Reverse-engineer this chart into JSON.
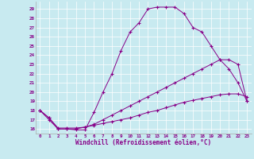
{
  "xlabel": "Windchill (Refroidissement éolien,°C)",
  "background_color": "#c8eaf0",
  "line_color": "#880088",
  "xlim": [
    -0.5,
    23.5
  ],
  "ylim": [
    15.5,
    29.8
  ],
  "xticks": [
    0,
    1,
    2,
    3,
    4,
    5,
    6,
    7,
    8,
    9,
    10,
    11,
    12,
    13,
    14,
    15,
    16,
    17,
    18,
    19,
    20,
    21,
    22,
    23
  ],
  "yticks": [
    16,
    17,
    18,
    19,
    20,
    21,
    22,
    23,
    24,
    25,
    26,
    27,
    28,
    29
  ],
  "line1_x": [
    0,
    1,
    2,
    3,
    4,
    5,
    6,
    7,
    8,
    9,
    10,
    11,
    12,
    13,
    14,
    15,
    16,
    17,
    18,
    19,
    20,
    21,
    22,
    23
  ],
  "line1_y": [
    18.0,
    17.0,
    16.0,
    16.0,
    15.9,
    15.9,
    17.8,
    20.0,
    22.0,
    24.5,
    26.5,
    27.5,
    29.0,
    29.2,
    29.2,
    29.2,
    28.5,
    27.0,
    26.5,
    25.0,
    23.5,
    22.5,
    21.0,
    19.0
  ],
  "line2_x": [
    0,
    1,
    2,
    3,
    4,
    5,
    6,
    7,
    8,
    9,
    10,
    11,
    12,
    13,
    14,
    15,
    16,
    17,
    18,
    19,
    20,
    21,
    22,
    23
  ],
  "line2_y": [
    18.0,
    17.2,
    16.0,
    16.0,
    16.0,
    16.2,
    16.5,
    17.0,
    17.5,
    18.0,
    18.5,
    19.0,
    19.5,
    20.0,
    20.5,
    21.0,
    21.5,
    22.0,
    22.5,
    23.0,
    23.5,
    23.5,
    23.0,
    19.0
  ],
  "line3_x": [
    0,
    1,
    2,
    3,
    4,
    5,
    6,
    7,
    8,
    9,
    10,
    11,
    12,
    13,
    14,
    15,
    16,
    17,
    18,
    19,
    20,
    21,
    22,
    23
  ],
  "line3_y": [
    18.0,
    17.2,
    16.1,
    16.1,
    16.1,
    16.2,
    16.4,
    16.6,
    16.8,
    17.0,
    17.2,
    17.5,
    17.8,
    18.0,
    18.3,
    18.6,
    18.9,
    19.1,
    19.3,
    19.5,
    19.7,
    19.8,
    19.8,
    19.5
  ]
}
